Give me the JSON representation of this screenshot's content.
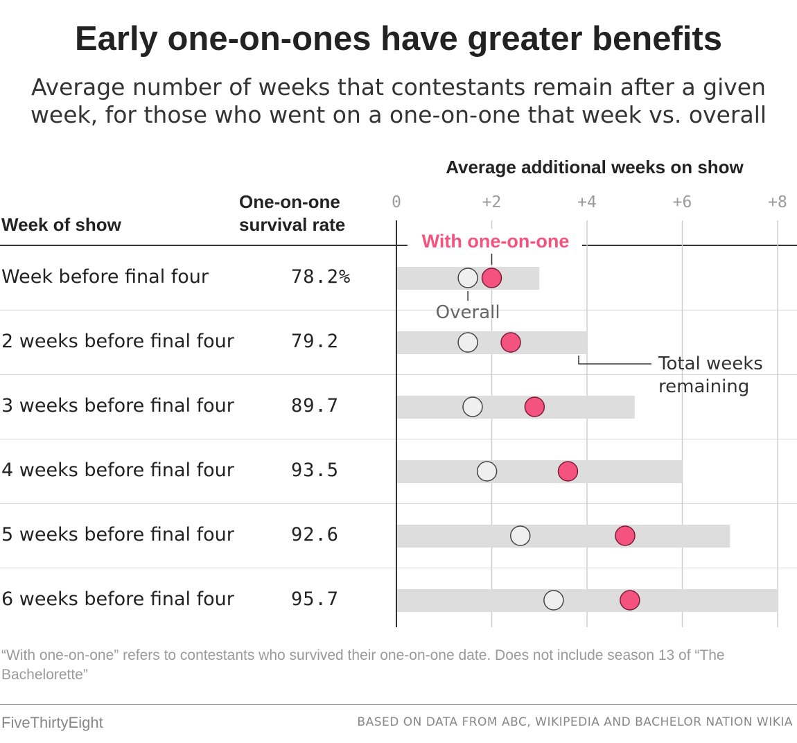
{
  "title": "Early one-on-ones have greater benefits",
  "subtitle_lines": [
    "Average number of weeks that contestants remain after a given",
    "week, for those who went on a one-on-one that week vs. overall"
  ],
  "columns": {
    "week": "Week of show",
    "rate_line1": "One-on-one",
    "rate_line2": "survival rate",
    "axis": "Average additional weeks on show"
  },
  "annotations": {
    "with": "With one-on-one",
    "overall": "Overall",
    "total_line1": "Total weeks",
    "total_line2": "remaining"
  },
  "colors": {
    "with": "#f4527f",
    "overall": "#efefef",
    "bar": "#dddddd",
    "tick": "#9a9a9a"
  },
  "chart_data": {
    "type": "dot",
    "xlabel": "Average additional weeks on show",
    "xlim": [
      0,
      8
    ],
    "xticks": [
      0,
      2,
      4,
      6,
      8
    ],
    "xtick_labels": [
      "0",
      "+2",
      "+4",
      "+6",
      "+8"
    ],
    "categories": [
      "Week before final four",
      "2 weeks before final four",
      "3 weeks before final four",
      "4 weeks before final four",
      "5 weeks before final four",
      "6 weeks before final four"
    ],
    "survival_rate": [
      "78.2%",
      "79.2",
      "89.7",
      "93.5",
      "92.6",
      "95.7"
    ],
    "series": [
      {
        "name": "Total weeks remaining",
        "values": [
          3,
          4,
          5,
          6,
          7,
          8
        ]
      },
      {
        "name": "Overall",
        "values": [
          1.5,
          1.5,
          1.6,
          1.9,
          2.6,
          3.3
        ]
      },
      {
        "name": "With one-on-one",
        "values": [
          2.0,
          2.4,
          2.9,
          3.6,
          4.8,
          4.9
        ]
      }
    ]
  },
  "footnote": "“With one-on-one” refers to contestants who survived their one-on-one date. Does not include season 13 of “The Bachelorette”",
  "brand": "FiveThirtyEight",
  "source": "BASED ON DATA FROM ABC, WIKIPEDIA AND BACHELOR NATION WIKIA"
}
